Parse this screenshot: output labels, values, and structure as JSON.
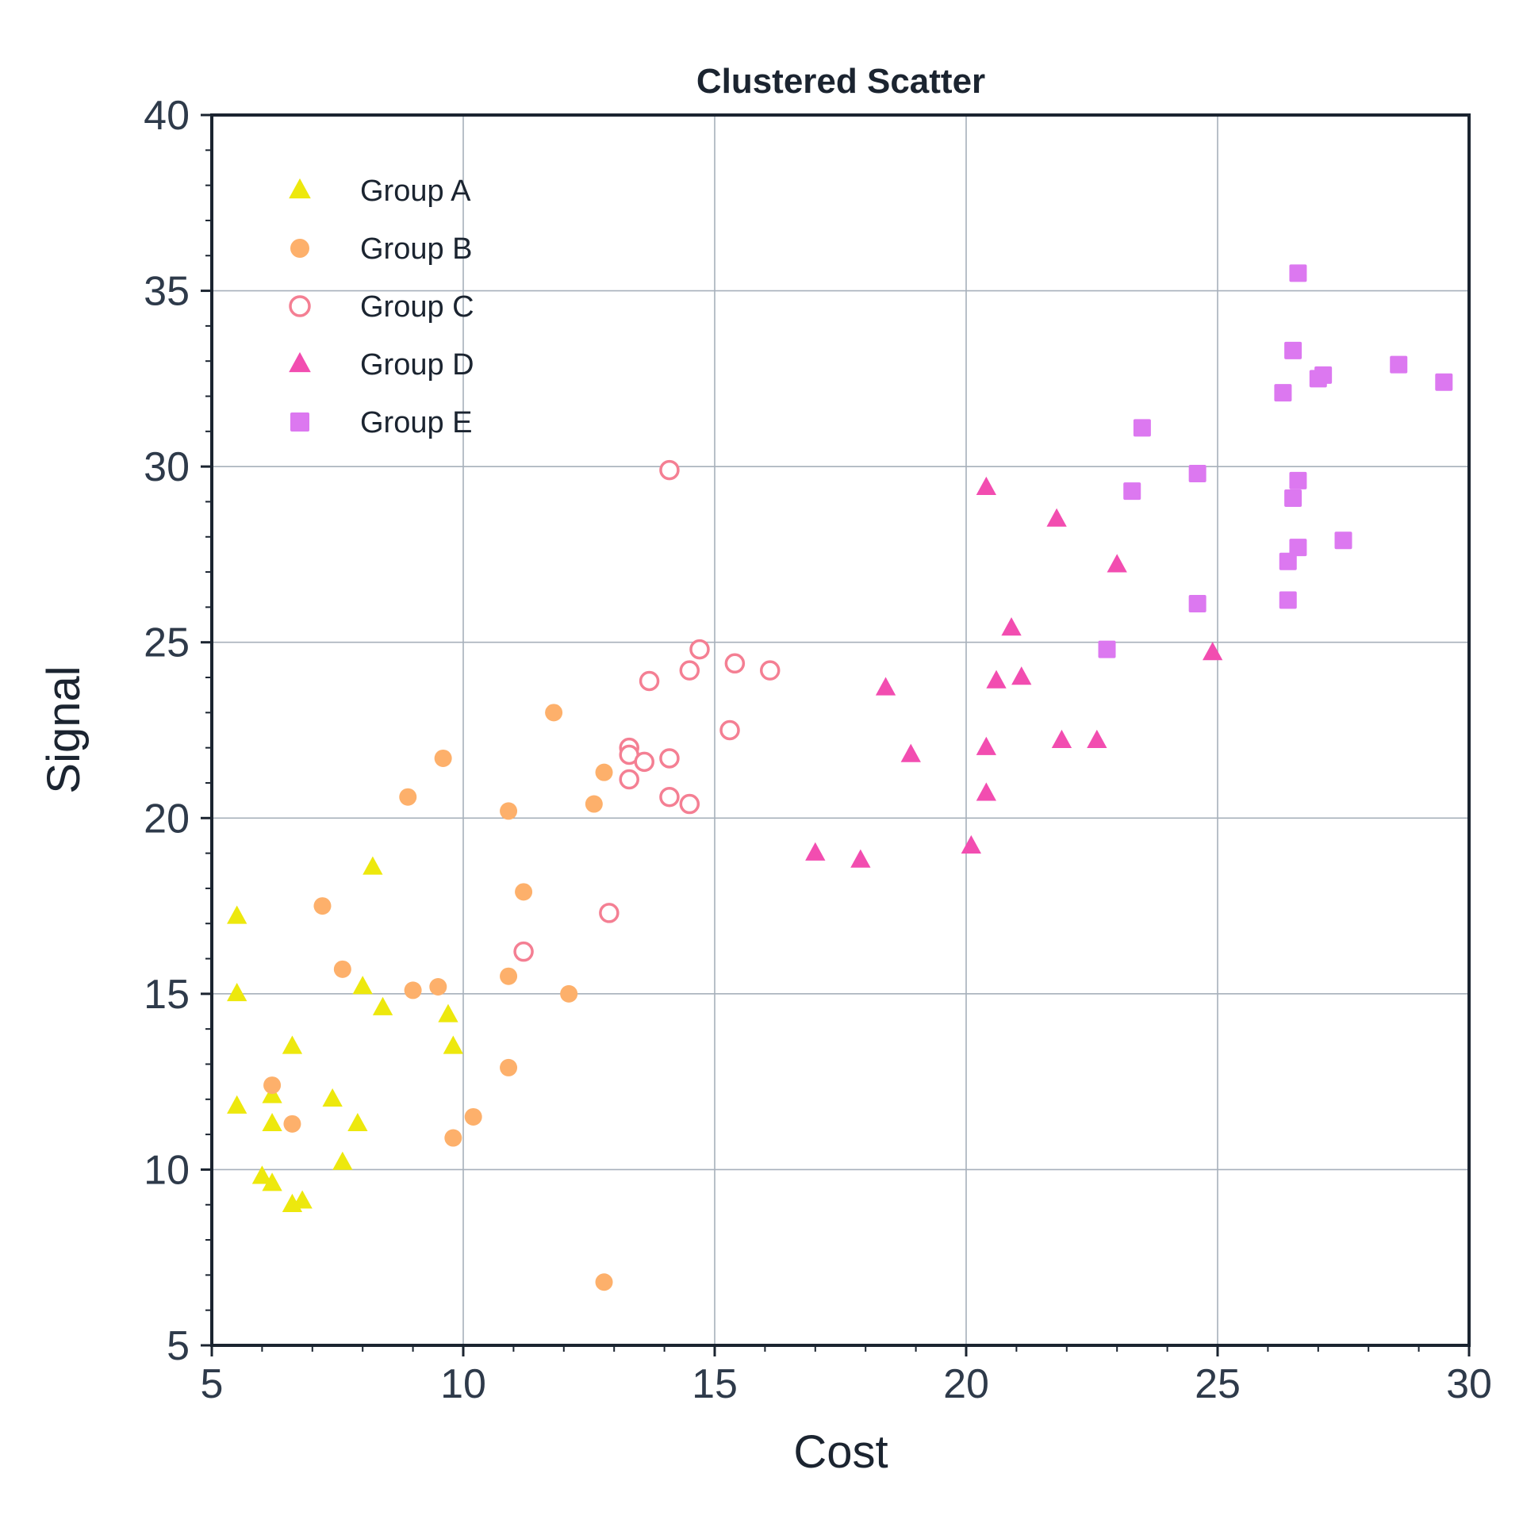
{
  "chart_data": {
    "type": "scatter",
    "title": "Clustered Scatter",
    "xlabel": "Cost",
    "ylabel": "Signal",
    "xlim": [
      5,
      30
    ],
    "ylim": [
      5,
      40
    ],
    "xticks": [
      5,
      10,
      15,
      20,
      25,
      30
    ],
    "yticks": [
      5,
      10,
      15,
      20,
      25,
      30,
      35,
      40
    ],
    "grid": true,
    "legend_position": "top-left",
    "series": [
      {
        "name": "Group A",
        "marker": "triangle",
        "filled": true,
        "color": "#ede80d",
        "points": [
          [
            5.5,
            17.2
          ],
          [
            5.5,
            15.0
          ],
          [
            5.5,
            11.8
          ],
          [
            6.0,
            9.8
          ],
          [
            6.2,
            9.6
          ],
          [
            6.2,
            12.1
          ],
          [
            6.2,
            11.3
          ],
          [
            6.6,
            13.5
          ],
          [
            6.6,
            9.0
          ],
          [
            6.8,
            9.1
          ],
          [
            7.4,
            12.0
          ],
          [
            7.6,
            10.2
          ],
          [
            7.9,
            11.3
          ],
          [
            8.0,
            15.2
          ],
          [
            8.2,
            18.6
          ],
          [
            8.4,
            14.6
          ],
          [
            9.7,
            14.4
          ],
          [
            9.8,
            13.5
          ]
        ]
      },
      {
        "name": "Group B",
        "marker": "circle",
        "filled": true,
        "color": "#fdb06b",
        "points": [
          [
            6.2,
            12.4
          ],
          [
            6.6,
            11.3
          ],
          [
            7.2,
            17.5
          ],
          [
            7.6,
            15.7
          ],
          [
            8.9,
            20.6
          ],
          [
            9.0,
            15.1
          ],
          [
            9.5,
            15.2
          ],
          [
            9.6,
            21.7
          ],
          [
            9.8,
            10.9
          ],
          [
            10.2,
            11.5
          ],
          [
            10.9,
            15.5
          ],
          [
            10.9,
            20.2
          ],
          [
            10.9,
            12.9
          ],
          [
            11.2,
            17.9
          ],
          [
            11.8,
            23.0
          ],
          [
            12.1,
            15.0
          ],
          [
            12.6,
            20.4
          ],
          [
            12.8,
            21.3
          ],
          [
            12.8,
            6.8
          ]
        ]
      },
      {
        "name": "Group C",
        "marker": "circle",
        "filled": false,
        "color": "#f47f93",
        "points": [
          [
            11.2,
            16.2
          ],
          [
            12.9,
            17.3
          ],
          [
            13.3,
            22.0
          ],
          [
            13.3,
            21.8
          ],
          [
            13.3,
            21.1
          ],
          [
            13.6,
            21.6
          ],
          [
            13.7,
            23.9
          ],
          [
            14.1,
            29.9
          ],
          [
            14.1,
            21.7
          ],
          [
            14.1,
            20.6
          ],
          [
            14.5,
            24.2
          ],
          [
            14.5,
            20.4
          ],
          [
            14.7,
            24.8
          ],
          [
            15.3,
            22.5
          ],
          [
            15.4,
            24.4
          ],
          [
            16.1,
            24.2
          ]
        ]
      },
      {
        "name": "Group D",
        "marker": "triangle",
        "filled": true,
        "color": "#f24db0",
        "points": [
          [
            17.0,
            19.0
          ],
          [
            17.9,
            18.8
          ],
          [
            18.4,
            23.7
          ],
          [
            18.9,
            21.8
          ],
          [
            20.1,
            19.2
          ],
          [
            20.4,
            29.4
          ],
          [
            20.4,
            22.0
          ],
          [
            20.4,
            20.7
          ],
          [
            20.6,
            23.9
          ],
          [
            20.9,
            25.4
          ],
          [
            21.1,
            24.0
          ],
          [
            21.8,
            28.5
          ],
          [
            21.9,
            22.2
          ],
          [
            22.6,
            22.2
          ],
          [
            23.0,
            27.2
          ],
          [
            24.9,
            24.7
          ]
        ]
      },
      {
        "name": "Group E",
        "marker": "square",
        "filled": true,
        "color": "#dc78f0",
        "points": [
          [
            22.8,
            24.8
          ],
          [
            23.3,
            29.3
          ],
          [
            23.5,
            31.1
          ],
          [
            24.6,
            29.8
          ],
          [
            24.6,
            26.1
          ],
          [
            26.3,
            32.1
          ],
          [
            26.4,
            26.2
          ],
          [
            26.4,
            27.3
          ],
          [
            26.5,
            33.3
          ],
          [
            26.5,
            29.1
          ],
          [
            26.6,
            35.5
          ],
          [
            26.6,
            29.6
          ],
          [
            26.6,
            27.7
          ],
          [
            27.0,
            32.5
          ],
          [
            27.1,
            32.6
          ],
          [
            27.5,
            27.9
          ],
          [
            28.6,
            32.9
          ],
          [
            29.5,
            32.4
          ]
        ]
      }
    ]
  }
}
